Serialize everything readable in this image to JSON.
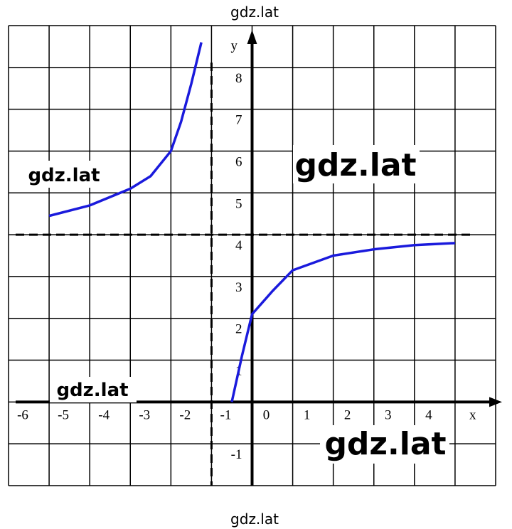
{
  "chart_data": {
    "type": "line",
    "x_label": "x",
    "y_label": "y",
    "xlim": [
      -6,
      6
    ],
    "ylim": [
      -2,
      9
    ],
    "xticks": [
      -6,
      -5,
      -4,
      -3,
      -2,
      -1,
      0,
      1,
      2,
      3,
      4
    ],
    "yticks": [
      -1,
      1,
      2,
      3,
      4,
      5,
      6,
      7,
      8
    ],
    "xgrid": [
      -6,
      -5,
      -4,
      -3,
      -2,
      -1,
      0,
      1,
      2,
      3,
      4,
      5,
      6
    ],
    "ygrid": [
      -2,
      -1,
      0,
      1,
      2,
      3,
      4,
      5,
      6,
      7,
      8,
      9
    ],
    "asymptotes": {
      "x": -1,
      "y": 4
    },
    "x": [
      -5,
      -4,
      -3,
      -2.5,
      -2,
      -1.75,
      -1.5,
      -1.25,
      -1,
      -0.5,
      -0.25,
      0,
      0.5,
      1,
      2,
      3,
      4,
      5
    ],
    "series": [
      {
        "color": "#1a1adc",
        "values": [
          4.45,
          4.7,
          5.1,
          5.4,
          6.0,
          6.7,
          7.6,
          8.6,
          null,
          0,
          1.1,
          2.1,
          2.65,
          3.15,
          3.5,
          3.65,
          3.75,
          3.8
        ]
      }
    ]
  },
  "watermarks": [
    "gdz.lat",
    "gdz.lat",
    "gdz.lat",
    "gdz.lat",
    "gdz.lat",
    "gdz.lat"
  ]
}
